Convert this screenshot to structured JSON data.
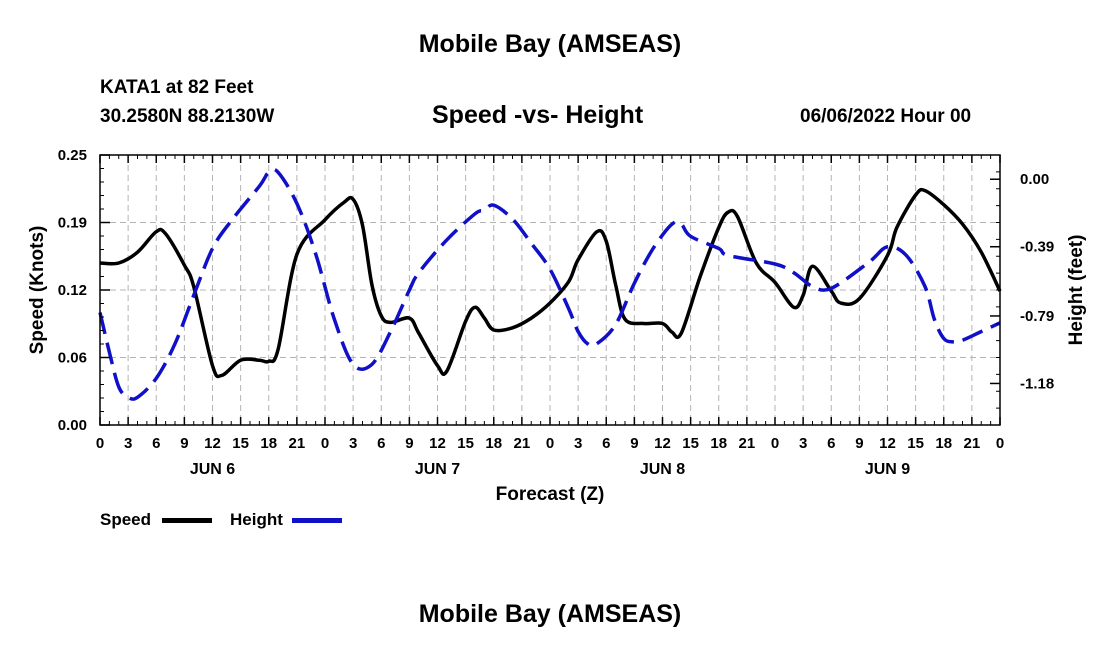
{
  "header": {
    "title": "Mobile Bay (AMSEAS)",
    "station": "KATA1 at 82 Feet",
    "latlon": "30.2580N  88.2130W",
    "subtitle": "Speed -vs- Height",
    "datetime": "06/06/2022 Hour 00"
  },
  "footer": {
    "title": "Mobile Bay (AMSEAS)"
  },
  "legend": {
    "speed_label": "Speed",
    "height_label": "Height",
    "speed_color": "#000000",
    "height_color": "#1010c8"
  },
  "chart_data": {
    "type": "line",
    "xlabel": "Forecast (Z)",
    "ylabel_left": "Speed (Knots)",
    "ylabel_right": "Height (feet)",
    "x_range_hours": [
      0,
      96
    ],
    "x_tick_labels": [
      "0",
      "3",
      "6",
      "9",
      "12",
      "15",
      "18",
      "21",
      "0",
      "3",
      "6",
      "9",
      "12",
      "15",
      "18",
      "21",
      "0",
      "3",
      "6",
      "9",
      "12",
      "15",
      "18",
      "21",
      "0",
      "3",
      "6",
      "9",
      "12",
      "15",
      "18",
      "21",
      "0"
    ],
    "day_labels": [
      {
        "label": "JUN 6",
        "hour": 12
      },
      {
        "label": "JUN 7",
        "hour": 36
      },
      {
        "label": "JUN 8",
        "hour": 60
      },
      {
        "label": "JUN 9",
        "hour": 84
      }
    ],
    "y_left_ticks": [
      "0.00",
      "0.06",
      "0.12",
      "0.19",
      "0.25"
    ],
    "y_left_range": [
      0,
      0.25
    ],
    "y_right_ticks": [
      "0.00",
      "-0.39",
      "-0.79",
      "-1.18"
    ],
    "y_right_values": [
      0.0,
      -0.39,
      -0.79,
      -1.18
    ],
    "y_right_range": [
      -1.42,
      0.14
    ],
    "grid": true,
    "legend_position": "bottom-left",
    "series": [
      {
        "name": "Speed",
        "axis": "left",
        "style": "solid",
        "points": [
          [
            0,
            0.15
          ],
          [
            2,
            0.15
          ],
          [
            4,
            0.16
          ],
          [
            6,
            0.179
          ],
          [
            7,
            0.177
          ],
          [
            9,
            0.148
          ],
          [
            10,
            0.128
          ],
          [
            12,
            0.055
          ],
          [
            13,
            0.046
          ],
          [
            15,
            0.06
          ],
          [
            17,
            0.06
          ],
          [
            18,
            0.059
          ],
          [
            19,
            0.07
          ],
          [
            21,
            0.158
          ],
          [
            24,
            0.19
          ],
          [
            26,
            0.206
          ],
          [
            27,
            0.209
          ],
          [
            28,
            0.185
          ],
          [
            29,
            0.13
          ],
          [
            30,
            0.101
          ],
          [
            31,
            0.095
          ],
          [
            33,
            0.099
          ],
          [
            34,
            0.085
          ],
          [
            36,
            0.055
          ],
          [
            37,
            0.05
          ],
          [
            39,
            0.096
          ],
          [
            40,
            0.109
          ],
          [
            41,
            0.099
          ],
          [
            42,
            0.088
          ],
          [
            44,
            0.09
          ],
          [
            46,
            0.099
          ],
          [
            48,
            0.113
          ],
          [
            50,
            0.133
          ],
          [
            51,
            0.153
          ],
          [
            53,
            0.179
          ],
          [
            54,
            0.17
          ],
          [
            55,
            0.13
          ],
          [
            56,
            0.098
          ],
          [
            58,
            0.094
          ],
          [
            60,
            0.094
          ],
          [
            61,
            0.086
          ],
          [
            62,
            0.085
          ],
          [
            64,
            0.137
          ],
          [
            66,
            0.183
          ],
          [
            67,
            0.197
          ],
          [
            68,
            0.193
          ],
          [
            70,
            0.15
          ],
          [
            72,
            0.132
          ],
          [
            74,
            0.109
          ],
          [
            75,
            0.12
          ],
          [
            76,
            0.147
          ],
          [
            78,
            0.124
          ],
          [
            79,
            0.113
          ],
          [
            81,
            0.117
          ],
          [
            84,
            0.157
          ],
          [
            85,
            0.183
          ],
          [
            87,
            0.213
          ],
          [
            88,
            0.217
          ],
          [
            90,
            0.204
          ],
          [
            92,
            0.186
          ],
          [
            94,
            0.16
          ],
          [
            96,
            0.124
          ]
        ]
      },
      {
        "name": "Height",
        "axis": "right",
        "style": "dashed",
        "points": [
          [
            0,
            -0.77
          ],
          [
            1,
            -1.0
          ],
          [
            2,
            -1.2
          ],
          [
            3,
            -1.26
          ],
          [
            4,
            -1.26
          ],
          [
            6,
            -1.15
          ],
          [
            8,
            -0.95
          ],
          [
            10,
            -0.67
          ],
          [
            12,
            -0.4
          ],
          [
            14,
            -0.24
          ],
          [
            17,
            -0.04
          ],
          [
            18,
            0.04
          ],
          [
            19,
            0.04
          ],
          [
            21,
            -0.14
          ],
          [
            23,
            -0.43
          ],
          [
            25,
            -0.81
          ],
          [
            27,
            -1.07
          ],
          [
            29,
            -1.07
          ],
          [
            31,
            -0.88
          ],
          [
            33,
            -0.64
          ],
          [
            34,
            -0.54
          ],
          [
            37,
            -0.35
          ],
          [
            40,
            -0.2
          ],
          [
            41,
            -0.18
          ],
          [
            42,
            -0.15
          ],
          [
            44,
            -0.23
          ],
          [
            46,
            -0.37
          ],
          [
            48,
            -0.52
          ],
          [
            50,
            -0.75
          ],
          [
            51,
            -0.88
          ],
          [
            52,
            -0.95
          ],
          [
            53,
            -0.95
          ],
          [
            55,
            -0.84
          ],
          [
            57,
            -0.6
          ],
          [
            59,
            -0.4
          ],
          [
            61,
            -0.26
          ],
          [
            62,
            -0.26
          ],
          [
            63,
            -0.33
          ],
          [
            66,
            -0.4
          ],
          [
            67,
            -0.44
          ],
          [
            72,
            -0.49
          ],
          [
            74,
            -0.54
          ],
          [
            76,
            -0.62
          ],
          [
            78,
            -0.63
          ],
          [
            82,
            -0.48
          ],
          [
            84,
            -0.39
          ],
          [
            86,
            -0.44
          ],
          [
            88,
            -0.62
          ],
          [
            89,
            -0.81
          ],
          [
            90,
            -0.92
          ],
          [
            91,
            -0.94
          ],
          [
            92,
            -0.93
          ],
          [
            94,
            -0.88
          ],
          [
            96,
            -0.83
          ]
        ]
      }
    ]
  }
}
